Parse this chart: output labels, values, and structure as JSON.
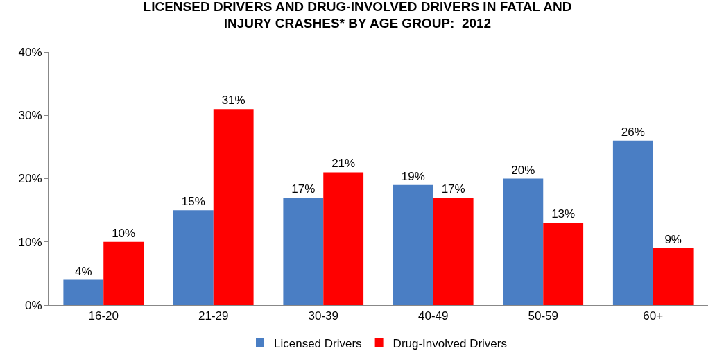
{
  "chart_data": {
    "type": "bar",
    "title": "LICENSED DRIVERS AND DRUG-INVOLVED DRIVERS IN FATAL AND INJURY CRASHES* BY AGE GROUP:  2012",
    "categories": [
      "16-20",
      "21-29",
      "30-39",
      "40-49",
      "50-59",
      "60+"
    ],
    "series": [
      {
        "name": "Licensed Drivers",
        "color": "#4a7ec4",
        "values": [
          4,
          15,
          17,
          19,
          20,
          26
        ],
        "value_labels": [
          "4%",
          "15%",
          "17%",
          "19%",
          "20%",
          "26%"
        ]
      },
      {
        "name": "Drug-Involved Drivers",
        "color": "#ff0000",
        "values": [
          10,
          31,
          21,
          17,
          13,
          9
        ],
        "value_labels": [
          "10%",
          "31%",
          "21%",
          "17%",
          "13%",
          "9%"
        ]
      }
    ],
    "ylim": [
      0,
      40
    ],
    "yticks": [
      {
        "value": 0,
        "label": "0%"
      },
      {
        "value": 10,
        "label": "10%"
      },
      {
        "value": 20,
        "label": "20%"
      },
      {
        "value": 30,
        "label": "30%"
      },
      {
        "value": 40,
        "label": "40%"
      }
    ],
    "grid": false,
    "legend": "bottom"
  }
}
